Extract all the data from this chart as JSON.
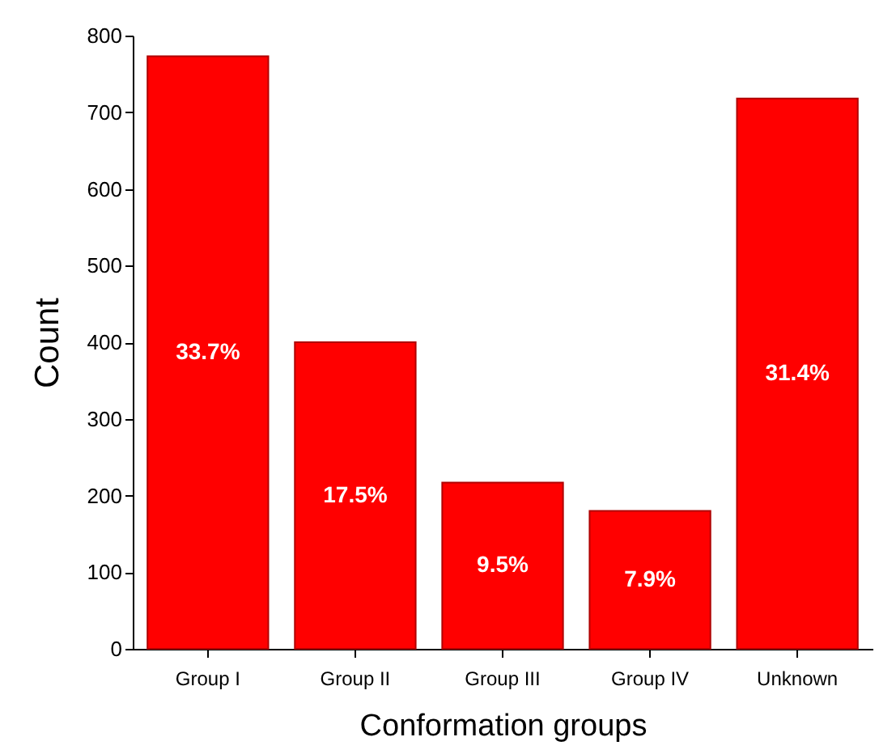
{
  "chart_data": {
    "type": "bar",
    "xlabel": "Conformation groups",
    "ylabel": "Count",
    "categories": [
      "Group I",
      "Group II",
      "Group III",
      "Group IV",
      "Unknown"
    ],
    "values": [
      773,
      400,
      217,
      180,
      718
    ],
    "annotations": [
      "33.7%",
      "17.5%",
      "9.5%",
      "7.9%",
      "31.4%"
    ],
    "color": "#ff0000",
    "ylim": [
      0,
      800
    ],
    "yticks": [
      0,
      100,
      200,
      300,
      400,
      500,
      600,
      700,
      800
    ],
    "grid": false
  }
}
